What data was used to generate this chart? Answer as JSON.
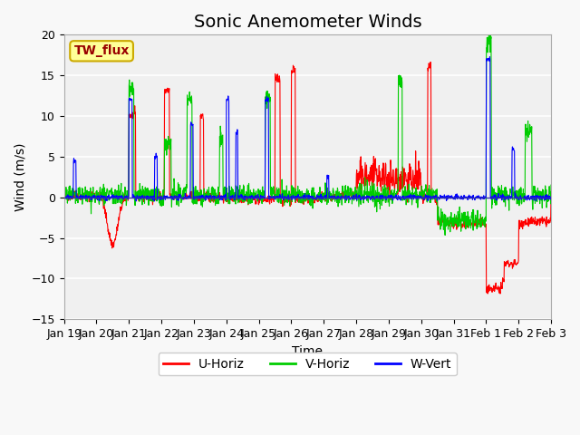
{
  "title": "Sonic Anemometer Winds",
  "xlabel": "Time",
  "ylabel": "Wind (m/s)",
  "ylim": [
    -15,
    20
  ],
  "yticks": [
    -15,
    -10,
    -5,
    0,
    5,
    10,
    15,
    20
  ],
  "xtick_labels": [
    "Jan 19",
    "Jan 20",
    "Jan 21",
    "Jan 22",
    "Jan 23",
    "Jan 24",
    "Jan 25",
    "Jan 26",
    "Jan 27",
    "Jan 28",
    "Jan 29",
    "Jan 30",
    "Jan 31",
    "Feb 1",
    "Feb 2",
    "Feb 3"
  ],
  "legend_labels": [
    "U-Horiz",
    "V-Horiz",
    "W-Vert"
  ],
  "line_colors": [
    "#ff0000",
    "#00cc00",
    "#0000ff"
  ],
  "plot_bg_color": "#f0f0f0",
  "annotation_text": "TW_flux",
  "annotation_bg": "#ffff99",
  "annotation_border": "#ccaa00",
  "grid_color": "#ffffff",
  "title_fontsize": 14,
  "label_fontsize": 10,
  "tick_fontsize": 9
}
